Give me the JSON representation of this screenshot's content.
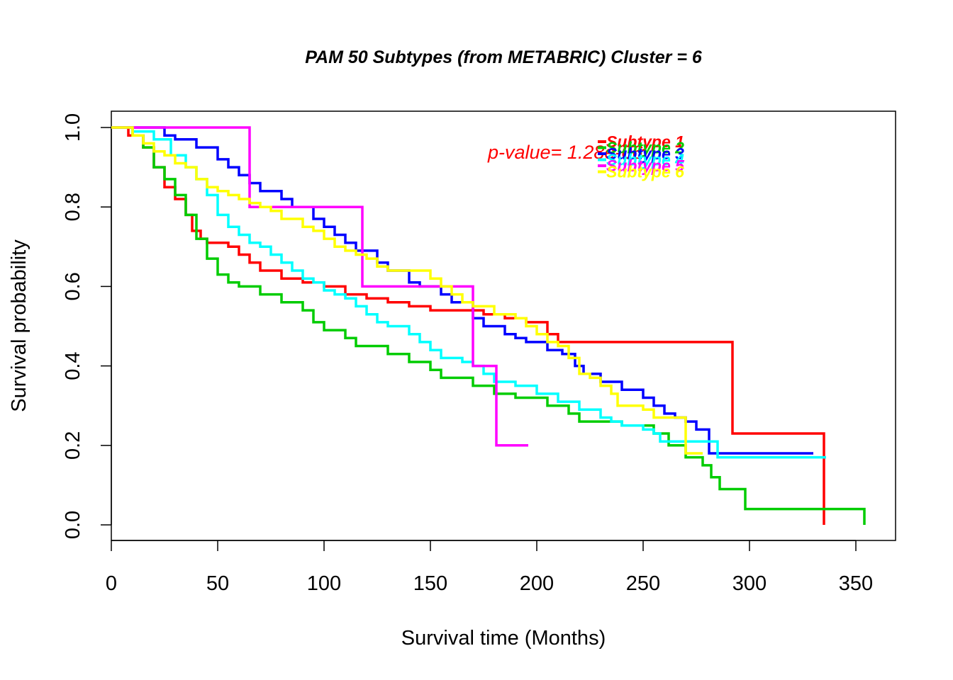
{
  "chart_data": {
    "type": "line",
    "title": "PAM 50 Subtypes (from METABRIC) Cluster = 6",
    "xlabel": "Survival time (Months)",
    "ylabel": "Survival probability",
    "xlim": [
      0,
      355
    ],
    "ylim": [
      0,
      1.0
    ],
    "x_ticks": [
      0,
      50,
      100,
      150,
      200,
      250,
      300,
      350
    ],
    "y_ticks": [
      0.0,
      0.2,
      0.4,
      0.6,
      0.8,
      1.0
    ],
    "x_tick_labels": [
      "0",
      "50",
      "100",
      "150",
      "200",
      "250",
      "300",
      "350"
    ],
    "y_tick_labels": [
      "0.0",
      "0.2",
      "0.4",
      "0.6",
      "0.8",
      "1.0"
    ],
    "grid": false,
    "legend_position": "top-right",
    "p_value_text": "p-value= 1.28e-06",
    "series": [
      {
        "name": "Subtype 1",
        "color": "#ff0000",
        "points": [
          [
            0,
            1.0
          ],
          [
            8,
            0.98
          ],
          [
            15,
            0.95
          ],
          [
            20,
            0.9
          ],
          [
            25,
            0.85
          ],
          [
            30,
            0.82
          ],
          [
            35,
            0.78
          ],
          [
            38,
            0.74
          ],
          [
            42,
            0.72
          ],
          [
            45,
            0.71
          ],
          [
            55,
            0.7
          ],
          [
            60,
            0.68
          ],
          [
            65,
            0.66
          ],
          [
            70,
            0.64
          ],
          [
            80,
            0.62
          ],
          [
            90,
            0.61
          ],
          [
            100,
            0.6
          ],
          [
            110,
            0.58
          ],
          [
            120,
            0.57
          ],
          [
            130,
            0.56
          ],
          [
            140,
            0.55
          ],
          [
            150,
            0.54
          ],
          [
            165,
            0.54
          ],
          [
            175,
            0.53
          ],
          [
            185,
            0.52
          ],
          [
            195,
            0.51
          ],
          [
            205,
            0.48
          ],
          [
            210,
            0.46
          ],
          [
            240,
            0.46
          ],
          [
            270,
            0.46
          ],
          [
            292,
            0.46
          ],
          [
            292,
            0.23
          ],
          [
            335,
            0.23
          ],
          [
            335,
            0.0
          ]
        ]
      },
      {
        "name": "Subtype 2",
        "color": "#00cc00",
        "points": [
          [
            0,
            1.0
          ],
          [
            10,
            0.98
          ],
          [
            15,
            0.95
          ],
          [
            20,
            0.9
          ],
          [
            25,
            0.87
          ],
          [
            30,
            0.83
          ],
          [
            35,
            0.78
          ],
          [
            40,
            0.72
          ],
          [
            45,
            0.67
          ],
          [
            50,
            0.63
          ],
          [
            55,
            0.61
          ],
          [
            60,
            0.6
          ],
          [
            70,
            0.58
          ],
          [
            80,
            0.56
          ],
          [
            90,
            0.54
          ],
          [
            95,
            0.51
          ],
          [
            100,
            0.49
          ],
          [
            110,
            0.47
          ],
          [
            115,
            0.45
          ],
          [
            130,
            0.43
          ],
          [
            140,
            0.41
          ],
          [
            150,
            0.39
          ],
          [
            155,
            0.37
          ],
          [
            170,
            0.35
          ],
          [
            180,
            0.33
          ],
          [
            190,
            0.32
          ],
          [
            205,
            0.3
          ],
          [
            215,
            0.28
          ],
          [
            220,
            0.26
          ],
          [
            240,
            0.25
          ],
          [
            255,
            0.23
          ],
          [
            262,
            0.2
          ],
          [
            270,
            0.17
          ],
          [
            278,
            0.15
          ],
          [
            282,
            0.12
          ],
          [
            286,
            0.09
          ],
          [
            298,
            0.08
          ],
          [
            298,
            0.04
          ],
          [
            354,
            0.04
          ],
          [
            354,
            0.0
          ]
        ]
      },
      {
        "name": "Subtype 3",
        "color": "#0000ff",
        "points": [
          [
            0,
            1.0
          ],
          [
            15,
            1.0
          ],
          [
            25,
            0.98
          ],
          [
            30,
            0.97
          ],
          [
            40,
            0.95
          ],
          [
            50,
            0.92
          ],
          [
            55,
            0.9
          ],
          [
            60,
            0.88
          ],
          [
            65,
            0.86
          ],
          [
            70,
            0.84
          ],
          [
            80,
            0.82
          ],
          [
            85,
            0.8
          ],
          [
            95,
            0.77
          ],
          [
            100,
            0.75
          ],
          [
            105,
            0.73
          ],
          [
            110,
            0.71
          ],
          [
            115,
            0.69
          ],
          [
            125,
            0.66
          ],
          [
            130,
            0.64
          ],
          [
            140,
            0.61
          ],
          [
            145,
            0.6
          ],
          [
            155,
            0.58
          ],
          [
            160,
            0.56
          ],
          [
            170,
            0.52
          ],
          [
            175,
            0.5
          ],
          [
            185,
            0.48
          ],
          [
            190,
            0.47
          ],
          [
            195,
            0.46
          ],
          [
            205,
            0.44
          ],
          [
            212,
            0.43
          ],
          [
            218,
            0.4
          ],
          [
            222,
            0.38
          ],
          [
            230,
            0.36
          ],
          [
            240,
            0.34
          ],
          [
            250,
            0.32
          ],
          [
            255,
            0.3
          ],
          [
            260,
            0.28
          ],
          [
            265,
            0.27
          ],
          [
            270,
            0.26
          ],
          [
            275,
            0.24
          ],
          [
            281,
            0.22
          ],
          [
            281,
            0.18
          ],
          [
            330,
            0.18
          ]
        ]
      },
      {
        "name": "Subtype 4",
        "color": "#00ffff",
        "points": [
          [
            0,
            1.0
          ],
          [
            10,
            0.99
          ],
          [
            20,
            0.97
          ],
          [
            28,
            0.93
          ],
          [
            35,
            0.9
          ],
          [
            40,
            0.87
          ],
          [
            45,
            0.83
          ],
          [
            50,
            0.78
          ],
          [
            55,
            0.75
          ],
          [
            60,
            0.73
          ],
          [
            65,
            0.71
          ],
          [
            70,
            0.7
          ],
          [
            75,
            0.68
          ],
          [
            80,
            0.66
          ],
          [
            85,
            0.64
          ],
          [
            90,
            0.62
          ],
          [
            95,
            0.61
          ],
          [
            100,
            0.59
          ],
          [
            105,
            0.58
          ],
          [
            110,
            0.57
          ],
          [
            115,
            0.55
          ],
          [
            120,
            0.53
          ],
          [
            125,
            0.51
          ],
          [
            130,
            0.5
          ],
          [
            140,
            0.48
          ],
          [
            145,
            0.46
          ],
          [
            150,
            0.44
          ],
          [
            155,
            0.42
          ],
          [
            165,
            0.41
          ],
          [
            170,
            0.4
          ],
          [
            175,
            0.38
          ],
          [
            180,
            0.36
          ],
          [
            190,
            0.35
          ],
          [
            200,
            0.33
          ],
          [
            210,
            0.31
          ],
          [
            220,
            0.29
          ],
          [
            230,
            0.27
          ],
          [
            235,
            0.26
          ],
          [
            240,
            0.25
          ],
          [
            250,
            0.24
          ],
          [
            255,
            0.23
          ],
          [
            258,
            0.21
          ],
          [
            275,
            0.21
          ],
          [
            285,
            0.21
          ],
          [
            285,
            0.17
          ],
          [
            336,
            0.17
          ]
        ]
      },
      {
        "name": "Subtype 5",
        "color": "#ff00ff",
        "points": [
          [
            0,
            1.0
          ],
          [
            65,
            1.0
          ],
          [
            65,
            0.8
          ],
          [
            118,
            0.8
          ],
          [
            118,
            0.6
          ],
          [
            170,
            0.6
          ],
          [
            170,
            0.4
          ],
          [
            181,
            0.4
          ],
          [
            181,
            0.2
          ],
          [
            196,
            0.2
          ]
        ]
      },
      {
        "name": "Subtype 6",
        "color": "#ffff00",
        "points": [
          [
            0,
            1.0
          ],
          [
            10,
            0.98
          ],
          [
            15,
            0.96
          ],
          [
            20,
            0.94
          ],
          [
            25,
            0.93
          ],
          [
            30,
            0.91
          ],
          [
            35,
            0.9
          ],
          [
            40,
            0.87
          ],
          [
            45,
            0.85
          ],
          [
            50,
            0.84
          ],
          [
            55,
            0.83
          ],
          [
            60,
            0.82
          ],
          [
            65,
            0.81
          ],
          [
            70,
            0.8
          ],
          [
            75,
            0.79
          ],
          [
            80,
            0.77
          ],
          [
            90,
            0.75
          ],
          [
            95,
            0.74
          ],
          [
            100,
            0.72
          ],
          [
            105,
            0.7
          ],
          [
            110,
            0.69
          ],
          [
            115,
            0.68
          ],
          [
            120,
            0.67
          ],
          [
            125,
            0.65
          ],
          [
            130,
            0.64
          ],
          [
            145,
            0.64
          ],
          [
            150,
            0.62
          ],
          [
            155,
            0.6
          ],
          [
            160,
            0.58
          ],
          [
            165,
            0.56
          ],
          [
            170,
            0.55
          ],
          [
            180,
            0.53
          ],
          [
            190,
            0.52
          ],
          [
            195,
            0.5
          ],
          [
            200,
            0.48
          ],
          [
            205,
            0.46
          ],
          [
            210,
            0.45
          ],
          [
            215,
            0.42
          ],
          [
            220,
            0.38
          ],
          [
            225,
            0.37
          ],
          [
            230,
            0.35
          ],
          [
            235,
            0.33
          ],
          [
            238,
            0.3
          ],
          [
            245,
            0.3
          ],
          [
            250,
            0.29
          ],
          [
            255,
            0.27
          ],
          [
            265,
            0.27
          ],
          [
            270,
            0.27
          ],
          [
            270,
            0.18
          ],
          [
            278,
            0.18
          ]
        ]
      }
    ]
  }
}
